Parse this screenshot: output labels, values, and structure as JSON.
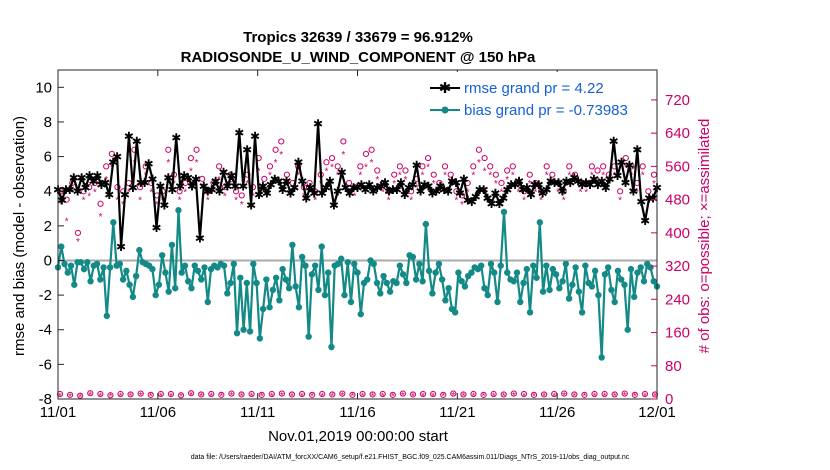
{
  "chart_data": {
    "type": "line",
    "title": "Tropics 32639 / 33679 = 96.912%",
    "subtitle": "RADIOSONDE_U_WIND_COMPONENT @ 150 hPa",
    "xlabel": "Nov.01,2019 00:00:00 start",
    "ylabel": "rmse and bias (model - observation)",
    "ylabel_right": "# of obs: o=possible; ×=assimilated",
    "footnote": "data file: /Users/raeder/DAI/ATM_forcXX/CAM6_setup/f.e21.FHIST_BGC.f09_025.CAM6assim.011/Diags_NTrS_2019-11/obs_diag_output.nc",
    "xlim": [
      0,
      30
    ],
    "ylim": [
      -8,
      11
    ],
    "ylim_right": [
      0,
      792
    ],
    "x_ticks": [
      0,
      5,
      10,
      15,
      20,
      25,
      30
    ],
    "x_tick_labels": [
      "11/01",
      "11/06",
      "11/11",
      "11/16",
      "11/21",
      "11/26",
      "12/01"
    ],
    "y_ticks": [
      -8,
      -6,
      -4,
      -2,
      0,
      2,
      4,
      6,
      8,
      10
    ],
    "y_tick_labels": [
      "-8",
      "-6",
      "-4",
      "-2",
      "0",
      "2",
      "4",
      "6",
      "8",
      "10"
    ],
    "y_ticks_right": [
      0,
      80,
      160,
      240,
      320,
      400,
      480,
      560,
      640,
      720
    ],
    "y_tick_labels_right": [
      "0",
      "80",
      "160",
      "240",
      "320",
      "400",
      "480",
      "560",
      "640",
      "720"
    ],
    "series": [
      {
        "name": "rmse",
        "legend_label": "rmse grand pr = 4.22",
        "color": "#000000",
        "marker": "star",
        "values": [
          4.1,
          3.5,
          4.1,
          4.1,
          4.8,
          4.0,
          4.8,
          4.2,
          4.9,
          4.6,
          4.9,
          4.4,
          4.5,
          3.8,
          5.7,
          6.0,
          0.8,
          3.8,
          7.2,
          4.2,
          6.9,
          4.5,
          4.5,
          5.6,
          4.7,
          1.9,
          4.3,
          3.2,
          4.8,
          4.1,
          7.1,
          4.3,
          4.9,
          4.8,
          4.3,
          4.7,
          1.3,
          4.3,
          4.0,
          4.1,
          4.6,
          4.0,
          5.1,
          4.3,
          4.9,
          4.3,
          7.4,
          4.3,
          6.4,
          3.2,
          7.2,
          3.8,
          4.3,
          3.9,
          4.4,
          4.7,
          4.6,
          4.1,
          4.6,
          3.9,
          4.2,
          5.7,
          4.6,
          3.6,
          4.2,
          3.9,
          7.9,
          3.9,
          4.2,
          4.6,
          3.2,
          4.0,
          5.1,
          4.2,
          3.9,
          4.2,
          4.2,
          4.4,
          4.1,
          4.4,
          4.0,
          4.2,
          4.3,
          4.5,
          4.0,
          4.1,
          4.1,
          4.5,
          3.8,
          4.2,
          4.4,
          5.5,
          4.0,
          4.4,
          4.3,
          3.9,
          4.0,
          4.3,
          4.1,
          4.0,
          4.6,
          4.5,
          3.9,
          4.7,
          3.5,
          3.4,
          3.7,
          4.1,
          4.1,
          3.6,
          3.3,
          3.9,
          3.3,
          3.6,
          4.1,
          4.4,
          4.4,
          4.6,
          4.1,
          4.2,
          3.8,
          4.4,
          4.4,
          3.9,
          4.1,
          4.6,
          4.5,
          4.5,
          4.0,
          4.6,
          4.5,
          4.8,
          4.6,
          4.4,
          4.5,
          4.4,
          4.7,
          4.4,
          4.6,
          4.2,
          4.7,
          6.9,
          4.9,
          5.7,
          4.5,
          5.5,
          4.0,
          6.4,
          3.4,
          2.3,
          3.6,
          3.6,
          4.2
        ]
      },
      {
        "name": "bias",
        "legend_label": "bias grand pr = -0.73983",
        "color": "#138a87",
        "marker": "dot",
        "values": [
          -0.4,
          0.8,
          -0.2,
          -0.7,
          -0.3,
          -1.4,
          -0.1,
          -0.1,
          -0.5,
          -0.1,
          -1.2,
          -0.3,
          -0.2,
          -1.1,
          -0.4,
          -3.2,
          -0.4,
          2.2,
          -0.3,
          -0.2,
          -1.1,
          -0.6,
          -1.4,
          -2.1,
          -0.9,
          0.6,
          -0.1,
          -0.2,
          -0.3,
          -0.5,
          -2.0,
          -1.4,
          0.3,
          -0.7,
          -1.8,
          0.9,
          -1.6,
          2.9,
          -0.7,
          -0.3,
          -1.2,
          -1.6,
          -0.3,
          -0.6,
          -1.1,
          -0.4,
          -2.4,
          -0.5,
          -0.3,
          -0.4,
          -0.2,
          -0.3,
          -1.9,
          -1.3,
          -0.2,
          -4.2,
          -1.0,
          -4.0,
          -1.3,
          -4.1,
          -0.2,
          -1.3,
          -4.5,
          -2.8,
          -1.1,
          -2.7,
          -1.7,
          -1.0,
          -2.3,
          -0.5,
          -1.1,
          -1.6,
          0.9,
          -1.5,
          -2.7,
          0.2,
          -0.3,
          -4.4,
          -0.8,
          -0.3,
          -1.7,
          0.8,
          -2.0,
          -0.7,
          -5.0,
          -0.3,
          -0.2,
          0.1,
          -2.0,
          -0.1,
          -2.4,
          -0.2,
          -0.7,
          -3.1,
          -1.3,
          -1.1,
          0.0,
          -0.2,
          -1.3,
          -1.9,
          -0.9,
          -1.3,
          -1.8,
          -1.2,
          -1.3,
          -0.3,
          -0.8,
          -1.3,
          0.3,
          0.2,
          -1.1,
          -0.2,
          -1.2,
          2.1,
          -0.6,
          -1.9,
          -0.7,
          -0.2,
          -1.1,
          -2.3,
          -1.6,
          -2.8,
          -3.0,
          -0.7,
          -1.2,
          -1.5,
          -0.9,
          -0.7,
          -0.4,
          -0.5,
          -0.3,
          -1.6,
          -2.0,
          -0.2,
          -0.7,
          -2.4,
          -0.3,
          2.8,
          -0.7,
          -1.1,
          -1.2,
          -0.7,
          -2.4,
          -1.3,
          -0.5,
          -3.0,
          -0.3,
          -1.0,
          2.2,
          -1.8,
          -0.3,
          -1.7,
          -0.5,
          -0.8,
          -1.6,
          -1.2,
          -0.2,
          -2.2,
          -1.4,
          -0.4,
          -1.8,
          -3.0,
          -0.3,
          -1.3,
          -1.5,
          -0.6,
          -2.0,
          -5.6,
          -0.8,
          -0.4,
          -1.7,
          -2.4,
          -0.6,
          -1.1,
          -1.4,
          -4.0,
          -0.5,
          -2.1,
          -0.7,
          -0.4,
          -1.2,
          -0.2,
          -0.4,
          -1.2,
          -1.5
        ]
      }
    ],
    "obs_counts": {
      "possible": [
        500,
        480,
        520,
        400,
        500,
        510,
        520,
        470,
        560,
        590,
        510,
        500,
        520,
        600,
        510,
        560,
        520,
        490,
        500,
        600,
        540,
        500,
        520,
        580,
        600,
        530,
        500,
        520,
        560,
        510,
        540,
        500,
        490,
        540,
        510,
        580,
        530,
        560,
        600,
        620,
        540,
        520,
        560,
        510,
        520,
        500,
        540,
        570,
        580,
        560,
        620,
        520,
        510,
        560,
        590,
        600,
        550,
        520,
        500,
        540,
        560,
        550,
        500,
        530,
        560,
        580,
        540,
        520,
        560,
        540,
        500,
        490,
        520,
        560,
        600,
        580,
        560,
        540,
        520,
        550,
        560,
        520,
        500,
        540,
        520,
        500,
        560,
        540,
        520,
        500,
        560,
        540,
        520,
        520,
        560,
        550,
        560,
        540,
        560,
        500,
        580,
        560,
        520,
        560,
        500,
        540
      ],
      "assimilated": [
        470,
        430,
        500,
        380,
        480,
        490,
        500,
        440,
        530,
        560,
        480,
        470,
        500,
        570,
        480,
        540,
        500,
        470,
        480,
        570,
        520,
        480,
        500,
        550,
        570,
        510,
        480,
        500,
        530,
        490,
        520,
        480,
        470,
        520,
        490,
        550,
        510,
        540,
        570,
        590,
        520,
        500,
        540,
        490,
        500,
        480,
        520,
        550,
        560,
        540,
        590,
        500,
        490,
        540,
        560,
        570,
        530,
        500,
        480,
        520,
        540,
        530,
        480,
        510,
        540,
        560,
        520,
        500,
        540,
        520,
        480,
        470,
        500,
        540,
        570,
        550,
        540,
        520,
        500,
        530,
        540,
        500,
        480,
        520,
        500,
        480,
        540,
        520,
        500,
        480,
        540,
        520,
        500,
        500,
        540,
        530,
        540,
        520,
        540,
        480,
        560,
        540,
        500,
        540,
        480,
        520
      ],
      "floor_possible": [
        12,
        10,
        8,
        14,
        12,
        9,
        12,
        11,
        13,
        10,
        12,
        12,
        9,
        14,
        11,
        12,
        10,
        13,
        11,
        12,
        10,
        12,
        13,
        11,
        12,
        10,
        12,
        11,
        13,
        10,
        12,
        11,
        12,
        10,
        13,
        11,
        12,
        12,
        10,
        13,
        11,
        12,
        10,
        12,
        11,
        13,
        12,
        10,
        11,
        12,
        13,
        11,
        10,
        12,
        12,
        11,
        13,
        10,
        12,
        11
      ],
      "floor_assimilated": [
        9,
        7,
        6,
        11,
        9,
        7,
        9,
        8,
        10,
        8,
        9,
        9,
        7,
        11,
        8,
        9,
        8,
        10,
        8,
        9,
        8,
        9,
        10,
        8,
        9,
        8,
        9,
        8,
        10,
        8,
        9,
        8,
        9,
        8,
        10,
        8,
        9,
        9,
        8,
        10,
        8,
        9,
        8,
        9,
        8,
        10,
        9,
        8,
        8,
        9,
        10,
        8,
        8,
        9,
        9,
        8,
        10,
        8,
        9,
        8
      ]
    },
    "colors": {
      "rmse": "#000000",
      "bias": "#138a87",
      "counts": "#cc0066",
      "legend_text": "#1560d8",
      "zero_line": "#aaaaaa"
    }
  }
}
